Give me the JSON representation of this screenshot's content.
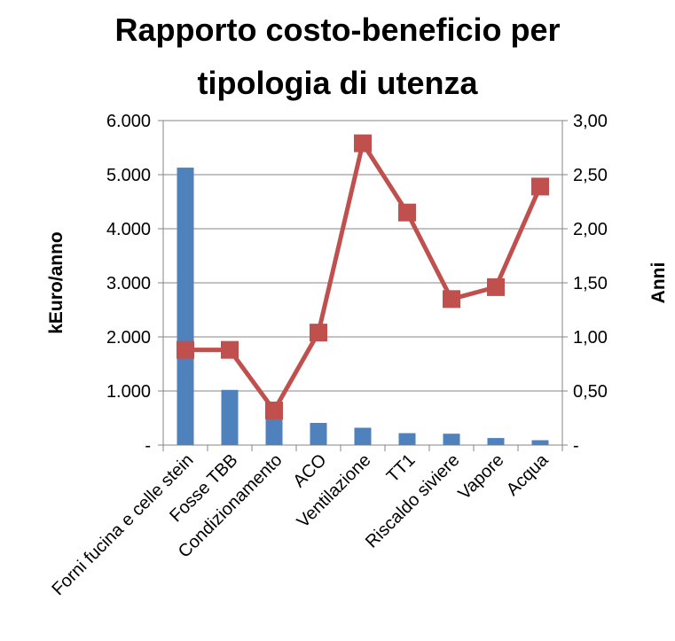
{
  "chart_data": {
    "type": "bar",
    "title_line1": "Rapporto costo-beneficio per",
    "title_line2": "tipologia di utenza",
    "categories": [
      "Forni fucina e celle stein",
      "Fosse TBB",
      "Condizionamento",
      "ACO",
      "Ventilazione",
      "TT1",
      "Riscaldo siviere",
      "Vapore",
      "Acqua"
    ],
    "ylabel": "kEuro/anno",
    "y2label": "Anni",
    "ylim": [
      0,
      6000
    ],
    "y2lim": [
      0,
      3
    ],
    "y_ticks": [
      "-",
      "1.000",
      "2.000",
      "3.000",
      "4.000",
      "5.000",
      "6.000"
    ],
    "y2_ticks": [
      "-",
      "0,50",
      "1,00",
      "1,50",
      "2,00",
      "2,50",
      "3,00"
    ],
    "grid": true,
    "legend": "none",
    "series": [
      {
        "type": "bar",
        "axis": "left",
        "color": "#4F81BD",
        "values": [
          5130,
          1020,
          500,
          410,
          320,
          220,
          210,
          130,
          90
        ]
      },
      {
        "type": "line",
        "axis": "right",
        "color": "#C0504D",
        "values": [
          0.88,
          0.88,
          0.32,
          1.04,
          2.79,
          2.15,
          1.35,
          1.46,
          2.39
        ]
      }
    ]
  }
}
